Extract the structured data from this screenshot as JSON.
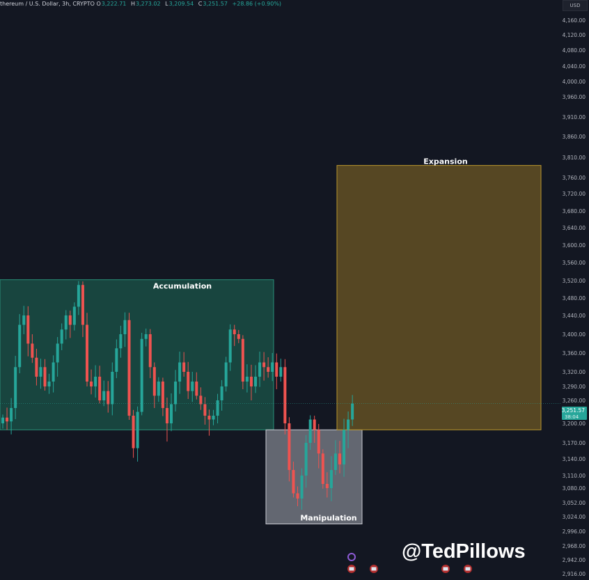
{
  "header": {
    "symbol": "thereum / U.S. Dollar, 3h, CRYPTO",
    "open_label": "O",
    "open": "3,222.71",
    "high_label": "H",
    "high": "3,273.02",
    "low_label": "L",
    "low": "3,209.54",
    "close_label": "C",
    "close": "3,251.57",
    "change": "+28.86 (+0.90%)"
  },
  "currency": "USD",
  "watermark": "@TedPillows",
  "colors": {
    "up": "#26a69a",
    "down": "#ef5350",
    "background": "#131722",
    "accumulation": "#1f6b5a",
    "manipulation": "#8a8d96",
    "expansion": "#a88a2a"
  },
  "chart_data": {
    "type": "candlestick",
    "y_ticks": [
      "4,160.00",
      "4,120.00",
      "4,080.00",
      "4,040.00",
      "4,000.00",
      "3,960.00",
      "3,910.00",
      "3,860.00",
      "3,810.00",
      "3,760.00",
      "3,720.00",
      "3,680.00",
      "3,640.00",
      "3,600.00",
      "3,560.00",
      "3,520.00",
      "3,480.00",
      "3,440.00",
      "3,400.00",
      "3,360.00",
      "3,320.00",
      "3,290.00",
      "3,260.00",
      "3,200.00",
      "3,170.00",
      "3,140.00",
      "3,110.00",
      "3,080.00",
      "3,052.00",
      "3,024.00",
      "2,996.00",
      "2,968.00",
      "2,942.00",
      "2,916.00"
    ],
    "closes": [
      3215,
      3205,
      3240,
      3330,
      3420,
      3440,
      3380,
      3350,
      3310,
      3330,
      3290,
      3300,
      3340,
      3380,
      3410,
      3440,
      3420,
      3460,
      3510,
      3420,
      3300,
      3290,
      3310,
      3260,
      3280,
      3250,
      3320,
      3370,
      3400,
      3430,
      3220,
      3160,
      3230,
      3390,
      3400,
      3330,
      3270,
      3300,
      3240,
      3200,
      3250,
      3300,
      3340,
      3320,
      3280,
      3300,
      3270,
      3250,
      3220,
      3210,
      3220,
      3260,
      3290,
      3340,
      3410,
      3400,
      3390,
      3300,
      3310,
      3290,
      3310,
      3340,
      3330,
      3320,
      3340,
      3310,
      3330,
      3200,
      3120,
      3070,
      3060,
      3110,
      3170,
      3210,
      3190,
      3150,
      3090,
      3080,
      3120,
      3150,
      3130,
      3190,
      3210,
      3251.57
    ],
    "last_price": "3,251.57",
    "countdown": "38:04",
    "zones": [
      {
        "label": "Accumulation",
        "top": 3522,
        "bottom": 3190
      },
      {
        "label": "Manipulation",
        "top": 3190,
        "bottom": 3010
      },
      {
        "label": "Expansion",
        "top": 3790,
        "bottom": 3190
      }
    ]
  }
}
